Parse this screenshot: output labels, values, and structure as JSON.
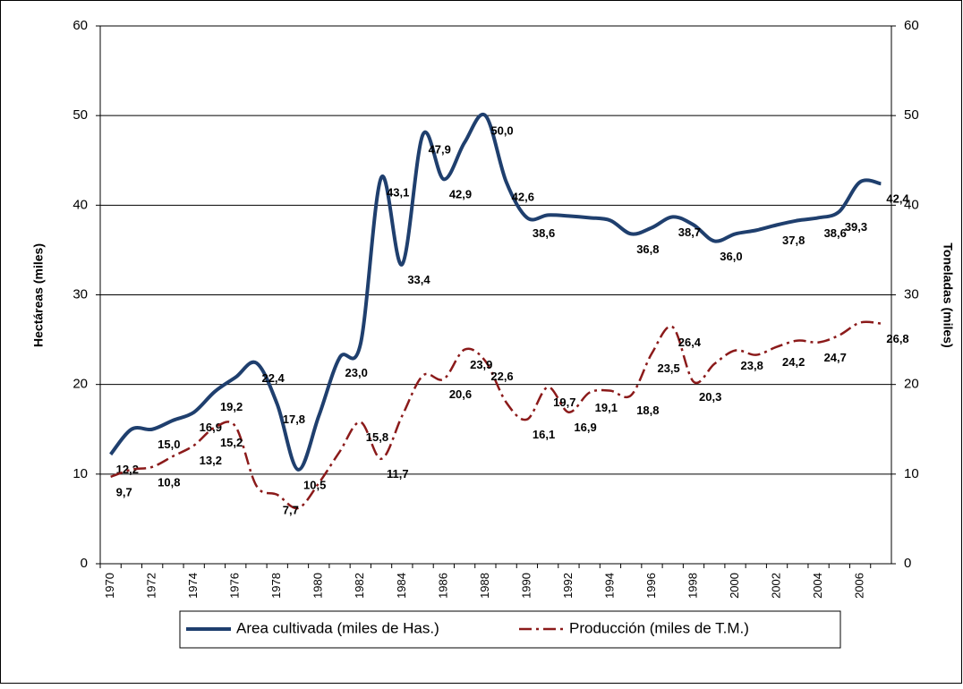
{
  "chart_data": {
    "type": "line",
    "categories": [
      "1970",
      null,
      "1972",
      null,
      "1974",
      null,
      "1976",
      null,
      "1978",
      null,
      "1980",
      null,
      "1982",
      null,
      "1984",
      null,
      "1986",
      null,
      "1988",
      null,
      "1990",
      null,
      "1992",
      null,
      "1994",
      null,
      "1996",
      null,
      "1998",
      null,
      "2000",
      null,
      "2002",
      null,
      "2004",
      null,
      "2006",
      null
    ],
    "y_label": "Hectáreas (miles)",
    "y2_label": "Toneladas (miles)",
    "ylim": [
      0,
      60
    ],
    "yticks": [
      0,
      10,
      20,
      30,
      40,
      50,
      60
    ],
    "y2lim": [
      0,
      60
    ],
    "y2ticks": [
      0,
      10,
      20,
      30,
      40,
      50,
      60
    ],
    "grid": true,
    "legend": "bottom",
    "series": [
      {
        "name": "Area cultivada (miles de Has.)",
        "color": "#1f3f6e",
        "style": "solid",
        "values": [
          12.2,
          15.0,
          15.0,
          16.0,
          16.9,
          19.2,
          20.8,
          22.4,
          17.8,
          10.5,
          16.5,
          23.0,
          24.5,
          43.1,
          33.4,
          47.9,
          42.9,
          47.0,
          50.0,
          42.6,
          38.6,
          38.9,
          38.8,
          38.6,
          38.3,
          36.8,
          37.5,
          38.7,
          37.8,
          36.0,
          36.8,
          37.2,
          37.8,
          38.3,
          38.6,
          39.3,
          42.6,
          42.4
        ],
        "value_labels": [
          "12,2",
          null,
          "15,0",
          null,
          "16,9",
          "19,2",
          null,
          "22,4",
          "17,8",
          "10,5",
          null,
          "23,0",
          null,
          "43,1",
          "33,4",
          "47,9",
          "42,9",
          null,
          "50,0",
          "42,6",
          "38,6",
          null,
          null,
          null,
          null,
          "36,8",
          null,
          "38,7",
          null,
          "36,0",
          null,
          null,
          "37,8",
          null,
          "38,6",
          "39,3",
          null,
          "42,4"
        ]
      },
      {
        "name": "Producción (miles de T.M.)",
        "color": "#8b1a1a",
        "style": "dashdot",
        "axis": "y2",
        "values": [
          9.7,
          10.5,
          10.8,
          12.0,
          13.2,
          15.2,
          15.3,
          8.7,
          7.7,
          6.2,
          9.0,
          12.5,
          15.8,
          11.7,
          16.5,
          21.0,
          20.6,
          23.9,
          22.6,
          18.0,
          16.1,
          19.7,
          16.9,
          19.1,
          19.3,
          18.8,
          23.5,
          26.4,
          20.3,
          22.3,
          23.8,
          23.3,
          24.2,
          24.9,
          24.7,
          25.5,
          26.9,
          26.8
        ],
        "value_labels": [
          "9,7",
          null,
          "10,8",
          null,
          "13,2",
          "15,2",
          null,
          null,
          "7,7",
          null,
          null,
          null,
          "15,8",
          "11,7",
          null,
          null,
          "20,6",
          "23,9",
          "22,6",
          null,
          "16,1",
          "19,7",
          "16,9",
          "19,1",
          null,
          "18,8",
          "23,5",
          "26,4",
          "20,3",
          null,
          "23,8",
          null,
          "24,2",
          null,
          "24,7",
          null,
          null,
          "26,8"
        ]
      }
    ]
  }
}
